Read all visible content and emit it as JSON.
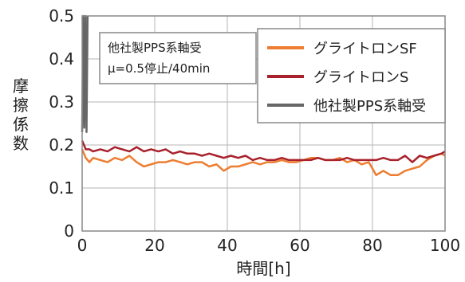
{
  "chart_data": {
    "type": "line",
    "xlabel": "時間[h]",
    "ylabel": "摩擦係数",
    "xlim": [
      0,
      100
    ],
    "ylim": [
      0,
      0.5
    ],
    "x_ticks": [
      "0",
      "20",
      "40",
      "60",
      "80",
      "100"
    ],
    "y_ticks": [
      "0",
      "0.1",
      "0.2",
      "0.3",
      "0.4",
      "0.5"
    ],
    "grid": true,
    "legend_position": "top-right",
    "annotation": {
      "lines": [
        "他社製PPS系軸受",
        "μ=0.5停止/40min"
      ]
    },
    "series": [
      {
        "name": "グライトロンSF",
        "color": "#ee7d31",
        "x": [
          0,
          1,
          2,
          3,
          5,
          7,
          9,
          11,
          13,
          15,
          17,
          19,
          21,
          23,
          25,
          27,
          29,
          31,
          33,
          35,
          37,
          39,
          41,
          43,
          45,
          47,
          49,
          51,
          53,
          55,
          57,
          59,
          61,
          63,
          65,
          67,
          69,
          71,
          73,
          75,
          77,
          79,
          81,
          83,
          85,
          87,
          89,
          91,
          93,
          95,
          97,
          99,
          100
        ],
        "values": [
          0.19,
          0.17,
          0.16,
          0.17,
          0.165,
          0.16,
          0.17,
          0.165,
          0.175,
          0.16,
          0.15,
          0.155,
          0.16,
          0.16,
          0.165,
          0.16,
          0.155,
          0.16,
          0.16,
          0.15,
          0.155,
          0.14,
          0.15,
          0.15,
          0.155,
          0.16,
          0.155,
          0.16,
          0.16,
          0.165,
          0.16,
          0.16,
          0.165,
          0.17,
          0.17,
          0.165,
          0.165,
          0.17,
          0.16,
          0.165,
          0.155,
          0.16,
          0.13,
          0.14,
          0.13,
          0.13,
          0.14,
          0.145,
          0.15,
          0.165,
          0.175,
          0.18,
          0.175
        ]
      },
      {
        "name": "グライトロンS",
        "color": "#a8212b",
        "x": [
          0,
          1,
          2,
          3,
          5,
          7,
          9,
          11,
          13,
          15,
          17,
          19,
          21,
          23,
          25,
          27,
          29,
          31,
          33,
          35,
          37,
          39,
          41,
          43,
          45,
          47,
          49,
          51,
          53,
          55,
          57,
          59,
          61,
          63,
          65,
          67,
          69,
          71,
          73,
          75,
          77,
          79,
          81,
          83,
          85,
          87,
          89,
          91,
          93,
          95,
          97,
          99,
          100
        ],
        "values": [
          0.21,
          0.19,
          0.19,
          0.185,
          0.19,
          0.185,
          0.195,
          0.19,
          0.185,
          0.195,
          0.185,
          0.19,
          0.185,
          0.19,
          0.18,
          0.185,
          0.18,
          0.18,
          0.175,
          0.18,
          0.175,
          0.17,
          0.175,
          0.17,
          0.175,
          0.165,
          0.17,
          0.165,
          0.165,
          0.17,
          0.165,
          0.165,
          0.165,
          0.165,
          0.17,
          0.165,
          0.165,
          0.165,
          0.17,
          0.165,
          0.165,
          0.165,
          0.165,
          0.17,
          0.165,
          0.165,
          0.175,
          0.16,
          0.175,
          0.17,
          0.175,
          0.18,
          0.185
        ]
      },
      {
        "name": "他社製PPS系軸受",
        "color": "#666666",
        "x": [
          0,
          0.3,
          0.6,
          0.9,
          1.2,
          1.5
        ],
        "values": [
          0.23,
          0.5,
          0.24,
          0.5,
          0.23,
          0.5
        ]
      }
    ]
  }
}
